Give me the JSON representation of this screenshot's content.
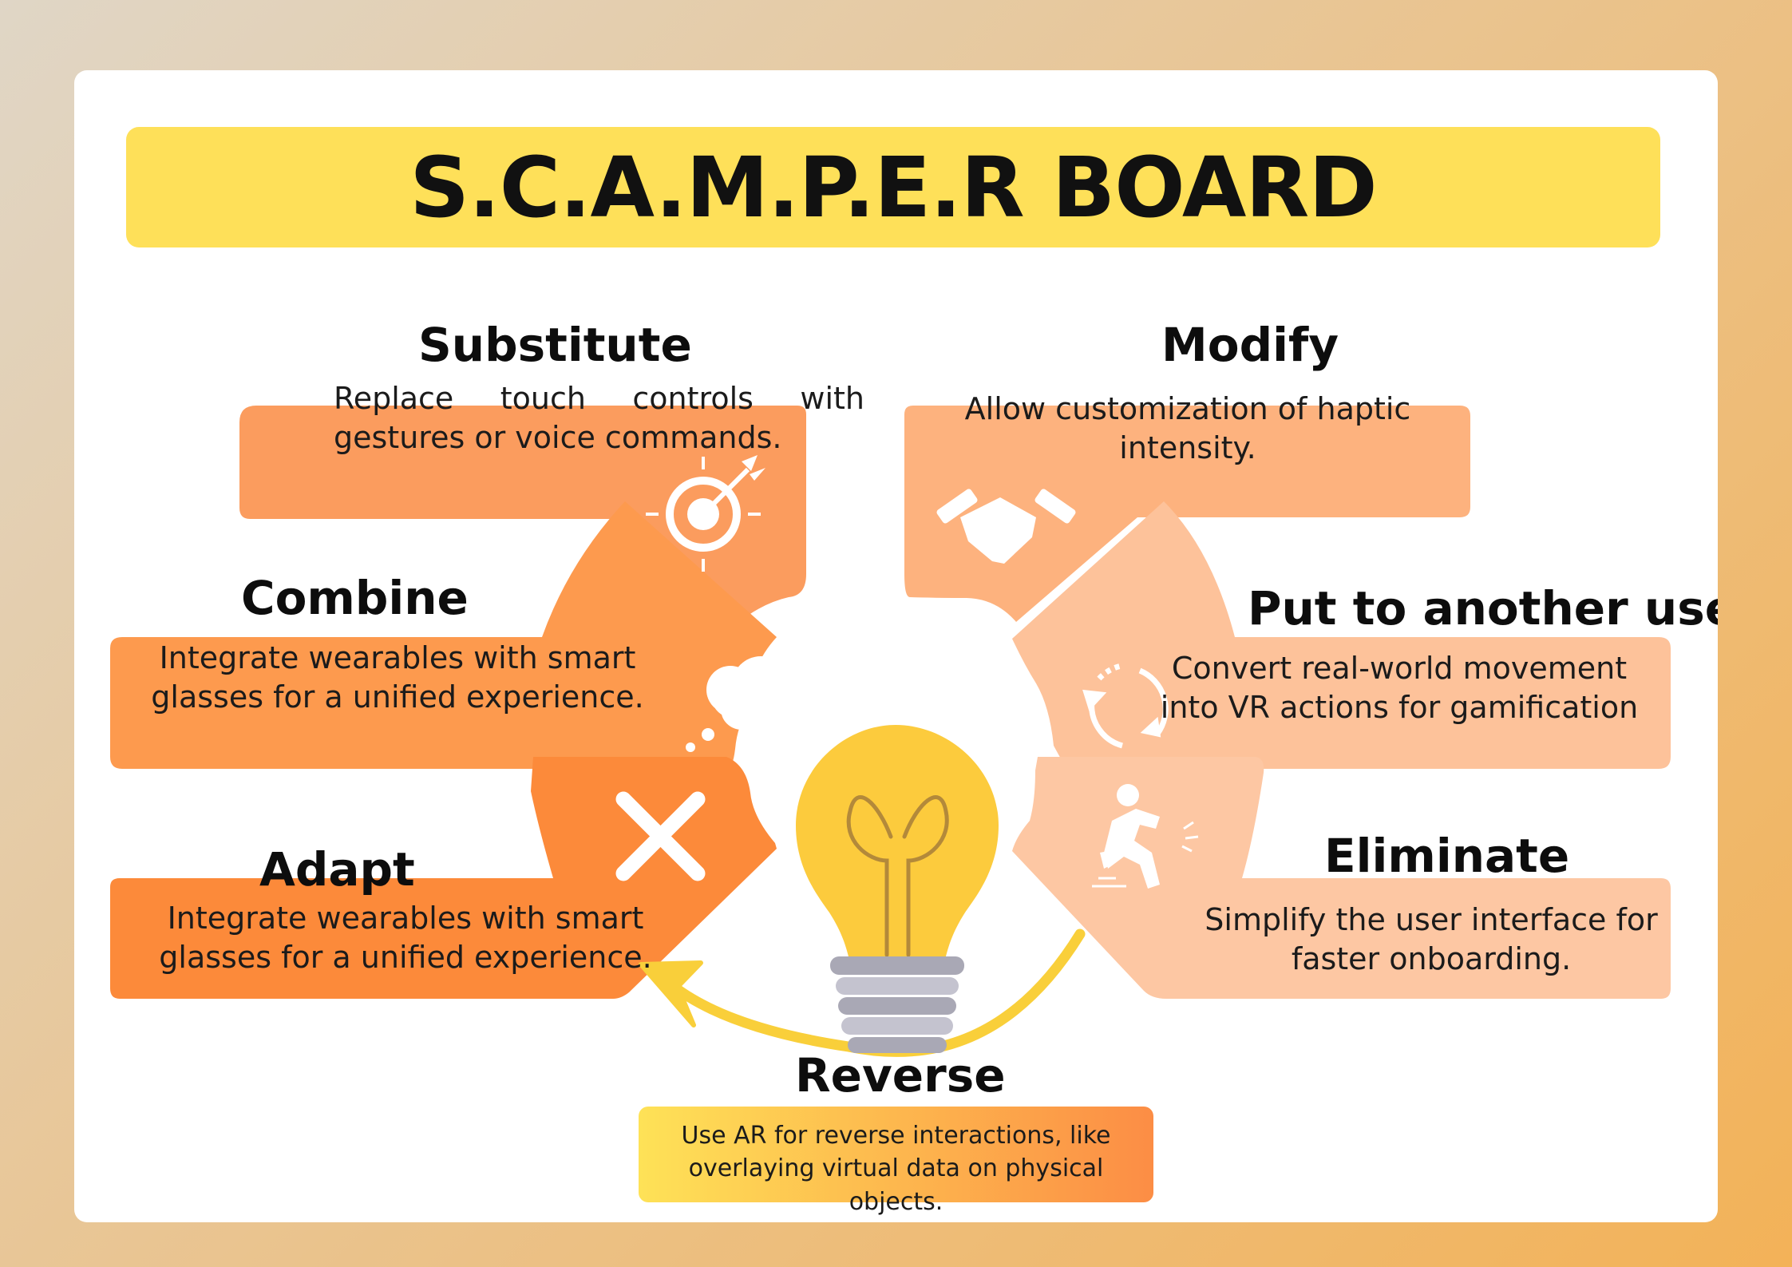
{
  "title": "S.C.A.M.P.E.R BOARD",
  "colors": {
    "title_bar": "#fee059",
    "substitute": "#fb9c5e",
    "modify": "#fdb27e",
    "combine": "#fd9a4e",
    "put_to_another_use": "#fdc29a",
    "adapt": "#fc8a3a",
    "eliminate": "#fdc7a3",
    "bulb": "#fccb3d",
    "arrow": "#f9cf3a"
  },
  "sections": {
    "substitute": {
      "title": "Substitute",
      "text": "Replace touch controls with gestures or voice commands.",
      "icon": "target-icon"
    },
    "modify": {
      "title": "Modify",
      "text": "Allow customization of haptic intensity.",
      "icon": "handshake-icon"
    },
    "combine": {
      "title": "Combine",
      "text": "Integrate wearables with smart glasses for a unified experience.",
      "icon": "thought-bubble-icon"
    },
    "put_to_another_use": {
      "title": "Put to another use",
      "text": "Convert real-world movement into VR actions for gamification",
      "icon": "cycle-arrows-icon"
    },
    "adapt": {
      "title": "Adapt",
      "text": "Integrate wearables with smart glasses for a unified experience.",
      "icon": "cross-icon"
    },
    "eliminate": {
      "title": "Eliminate",
      "text": "Simplify the user interface for faster onboarding.",
      "icon": "slipping-person-icon"
    },
    "reverse": {
      "title": "Reverse",
      "text": "Use AR for reverse interactions, like overlaying virtual data on physical objects.",
      "icon": "curved-arrow-icon"
    }
  },
  "center_icon": "light-bulb-icon"
}
